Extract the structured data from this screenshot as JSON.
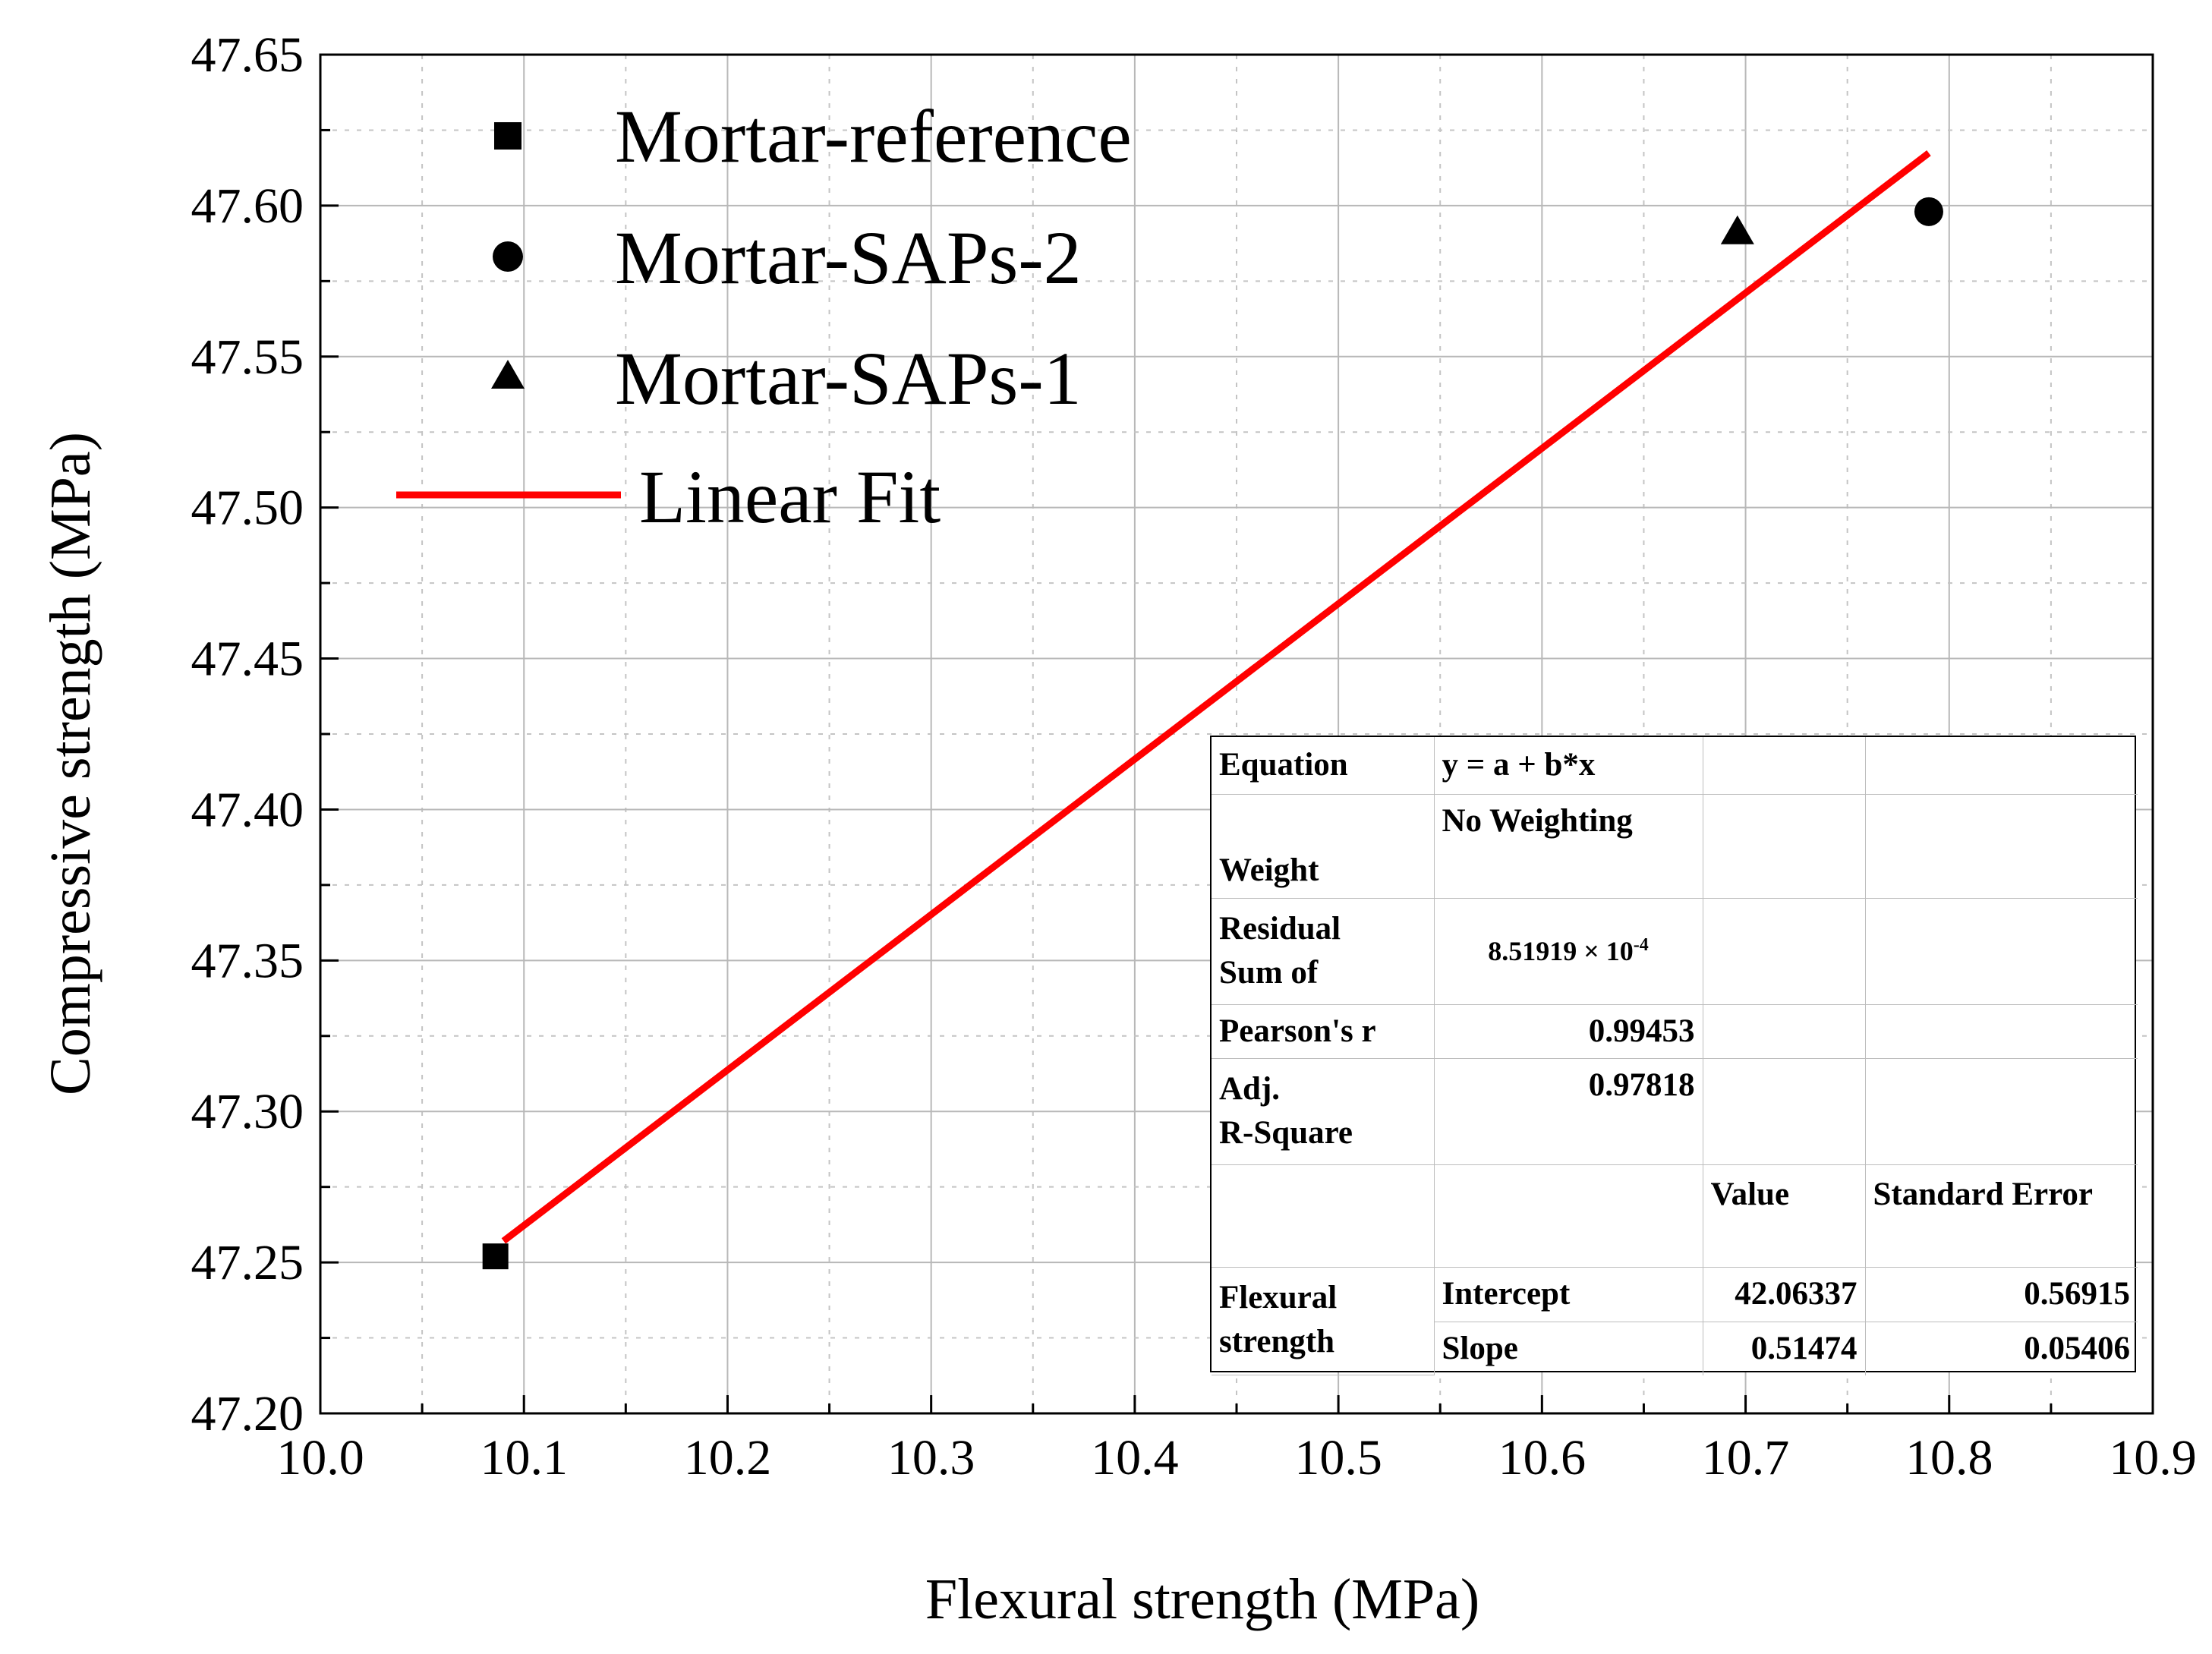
{
  "chart_data": {
    "type": "scatter",
    "xlabel": "Flexural strength (MPa)",
    "ylabel": "Compressive strength (MPa)",
    "xlim": [
      10.0,
      10.9
    ],
    "ylim": [
      47.2,
      47.65
    ],
    "x_ticks": [
      "10.0",
      "10.1",
      "10.2",
      "10.3",
      "10.4",
      "10.5",
      "10.6",
      "10.7",
      "10.8",
      "10.9"
    ],
    "x_tick_values": [
      10.0,
      10.1,
      10.2,
      10.3,
      10.4,
      10.5,
      10.6,
      10.7,
      10.8,
      10.9
    ],
    "y_ticks": [
      "47.20",
      "47.25",
      "47.30",
      "47.35",
      "47.40",
      "47.45",
      "47.50",
      "47.55",
      "47.60",
      "47.65"
    ],
    "y_tick_values": [
      47.2,
      47.25,
      47.3,
      47.35,
      47.4,
      47.45,
      47.5,
      47.55,
      47.6,
      47.65
    ],
    "grid": true,
    "legend_position": "top-left",
    "series": [
      {
        "name": "Mortar-reference",
        "marker": "square",
        "x": [
          10.086
        ],
        "y": [
          47.252
        ]
      },
      {
        "name": "Mortar-SAPs-2",
        "marker": "circle",
        "x": [
          10.79
        ],
        "y": [
          47.598
        ]
      },
      {
        "name": "Mortar-SAPs-1",
        "marker": "triangle",
        "x": [
          10.696
        ],
        "y": [
          47.591
        ]
      }
    ],
    "fit": {
      "name": "Linear Fit",
      "x_range": [
        10.09,
        10.79
      ],
      "intercept": 42.06337,
      "slope": 0.51474,
      "color": "#ff0000"
    }
  },
  "fit_table": {
    "equation_label": "Equation",
    "equation_value": "y = a + b*x",
    "weight_label": "Weight",
    "weight_value": "No Weighting",
    "rss_label_1": "Residual",
    "rss_label_2": "Sum of",
    "rss_value": "8.51919 × 10",
    "rss_exponent": "-4",
    "pearson_label": "Pearson's r",
    "pearson_value": "0.99453",
    "adjr_label_1": "Adj.",
    "adjr_label_2": "R-Square",
    "adjr_value": "0.97818",
    "value_header": "Value",
    "stderr_header": "Standard Error",
    "group_label_1": "Flexural",
    "group_label_2": "strength",
    "intercept_label": "Intercept",
    "intercept_value": "42.06337",
    "intercept_error": "0.56915",
    "slope_label": "Slope",
    "slope_value": "0.51474",
    "slope_error": "0.05406"
  }
}
